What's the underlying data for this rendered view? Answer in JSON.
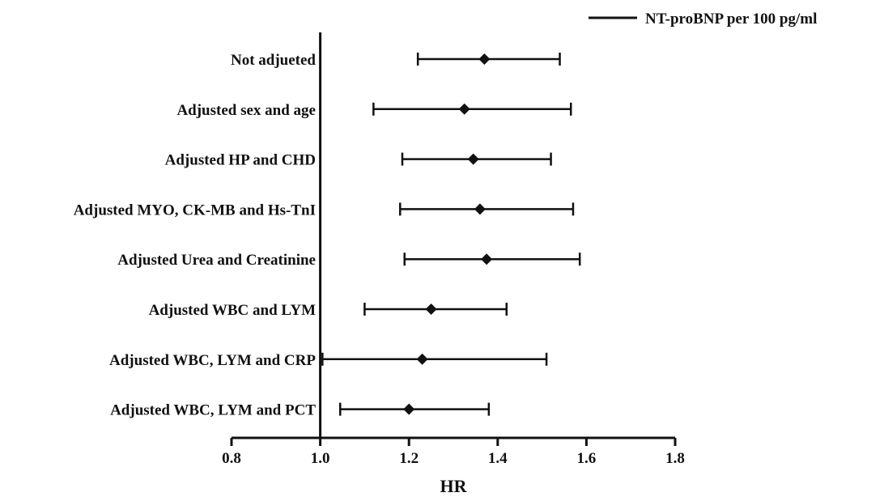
{
  "chart_data": {
    "type": "forest",
    "xlabel": "HR",
    "xlim": [
      0.8,
      1.8
    ],
    "xticks": [
      0.8,
      1.0,
      1.2,
      1.4,
      1.6,
      1.8
    ],
    "xtick_labels": [
      "0.8",
      "1.0",
      "1.2",
      "1.4",
      "1.6",
      "1.8"
    ],
    "reference_line_x": 1.0,
    "legend": {
      "label": "NT-proBNP per 100 pg/ml",
      "position": "top-right"
    },
    "categories": [
      "Not adjueted",
      "Adjusted sex and age",
      "Adjusted HP and CHD",
      "Adjusted MYO, CK-MB and Hs-TnI",
      "Adjusted Urea and Creatinine",
      "Adjusted WBC and LYM",
      "Adjusted WBC, LYM and CRP",
      "Adjusted WBC, LYM and PCT"
    ],
    "estimates": [
      1.37,
      1.325,
      1.345,
      1.36,
      1.375,
      1.25,
      1.23,
      1.2
    ],
    "lower": [
      1.22,
      1.12,
      1.185,
      1.18,
      1.19,
      1.1,
      1.005,
      1.045
    ],
    "upper": [
      1.54,
      1.565,
      1.52,
      1.57,
      1.585,
      1.42,
      1.51,
      1.38
    ],
    "marker": "diamond",
    "color": "#111111"
  }
}
